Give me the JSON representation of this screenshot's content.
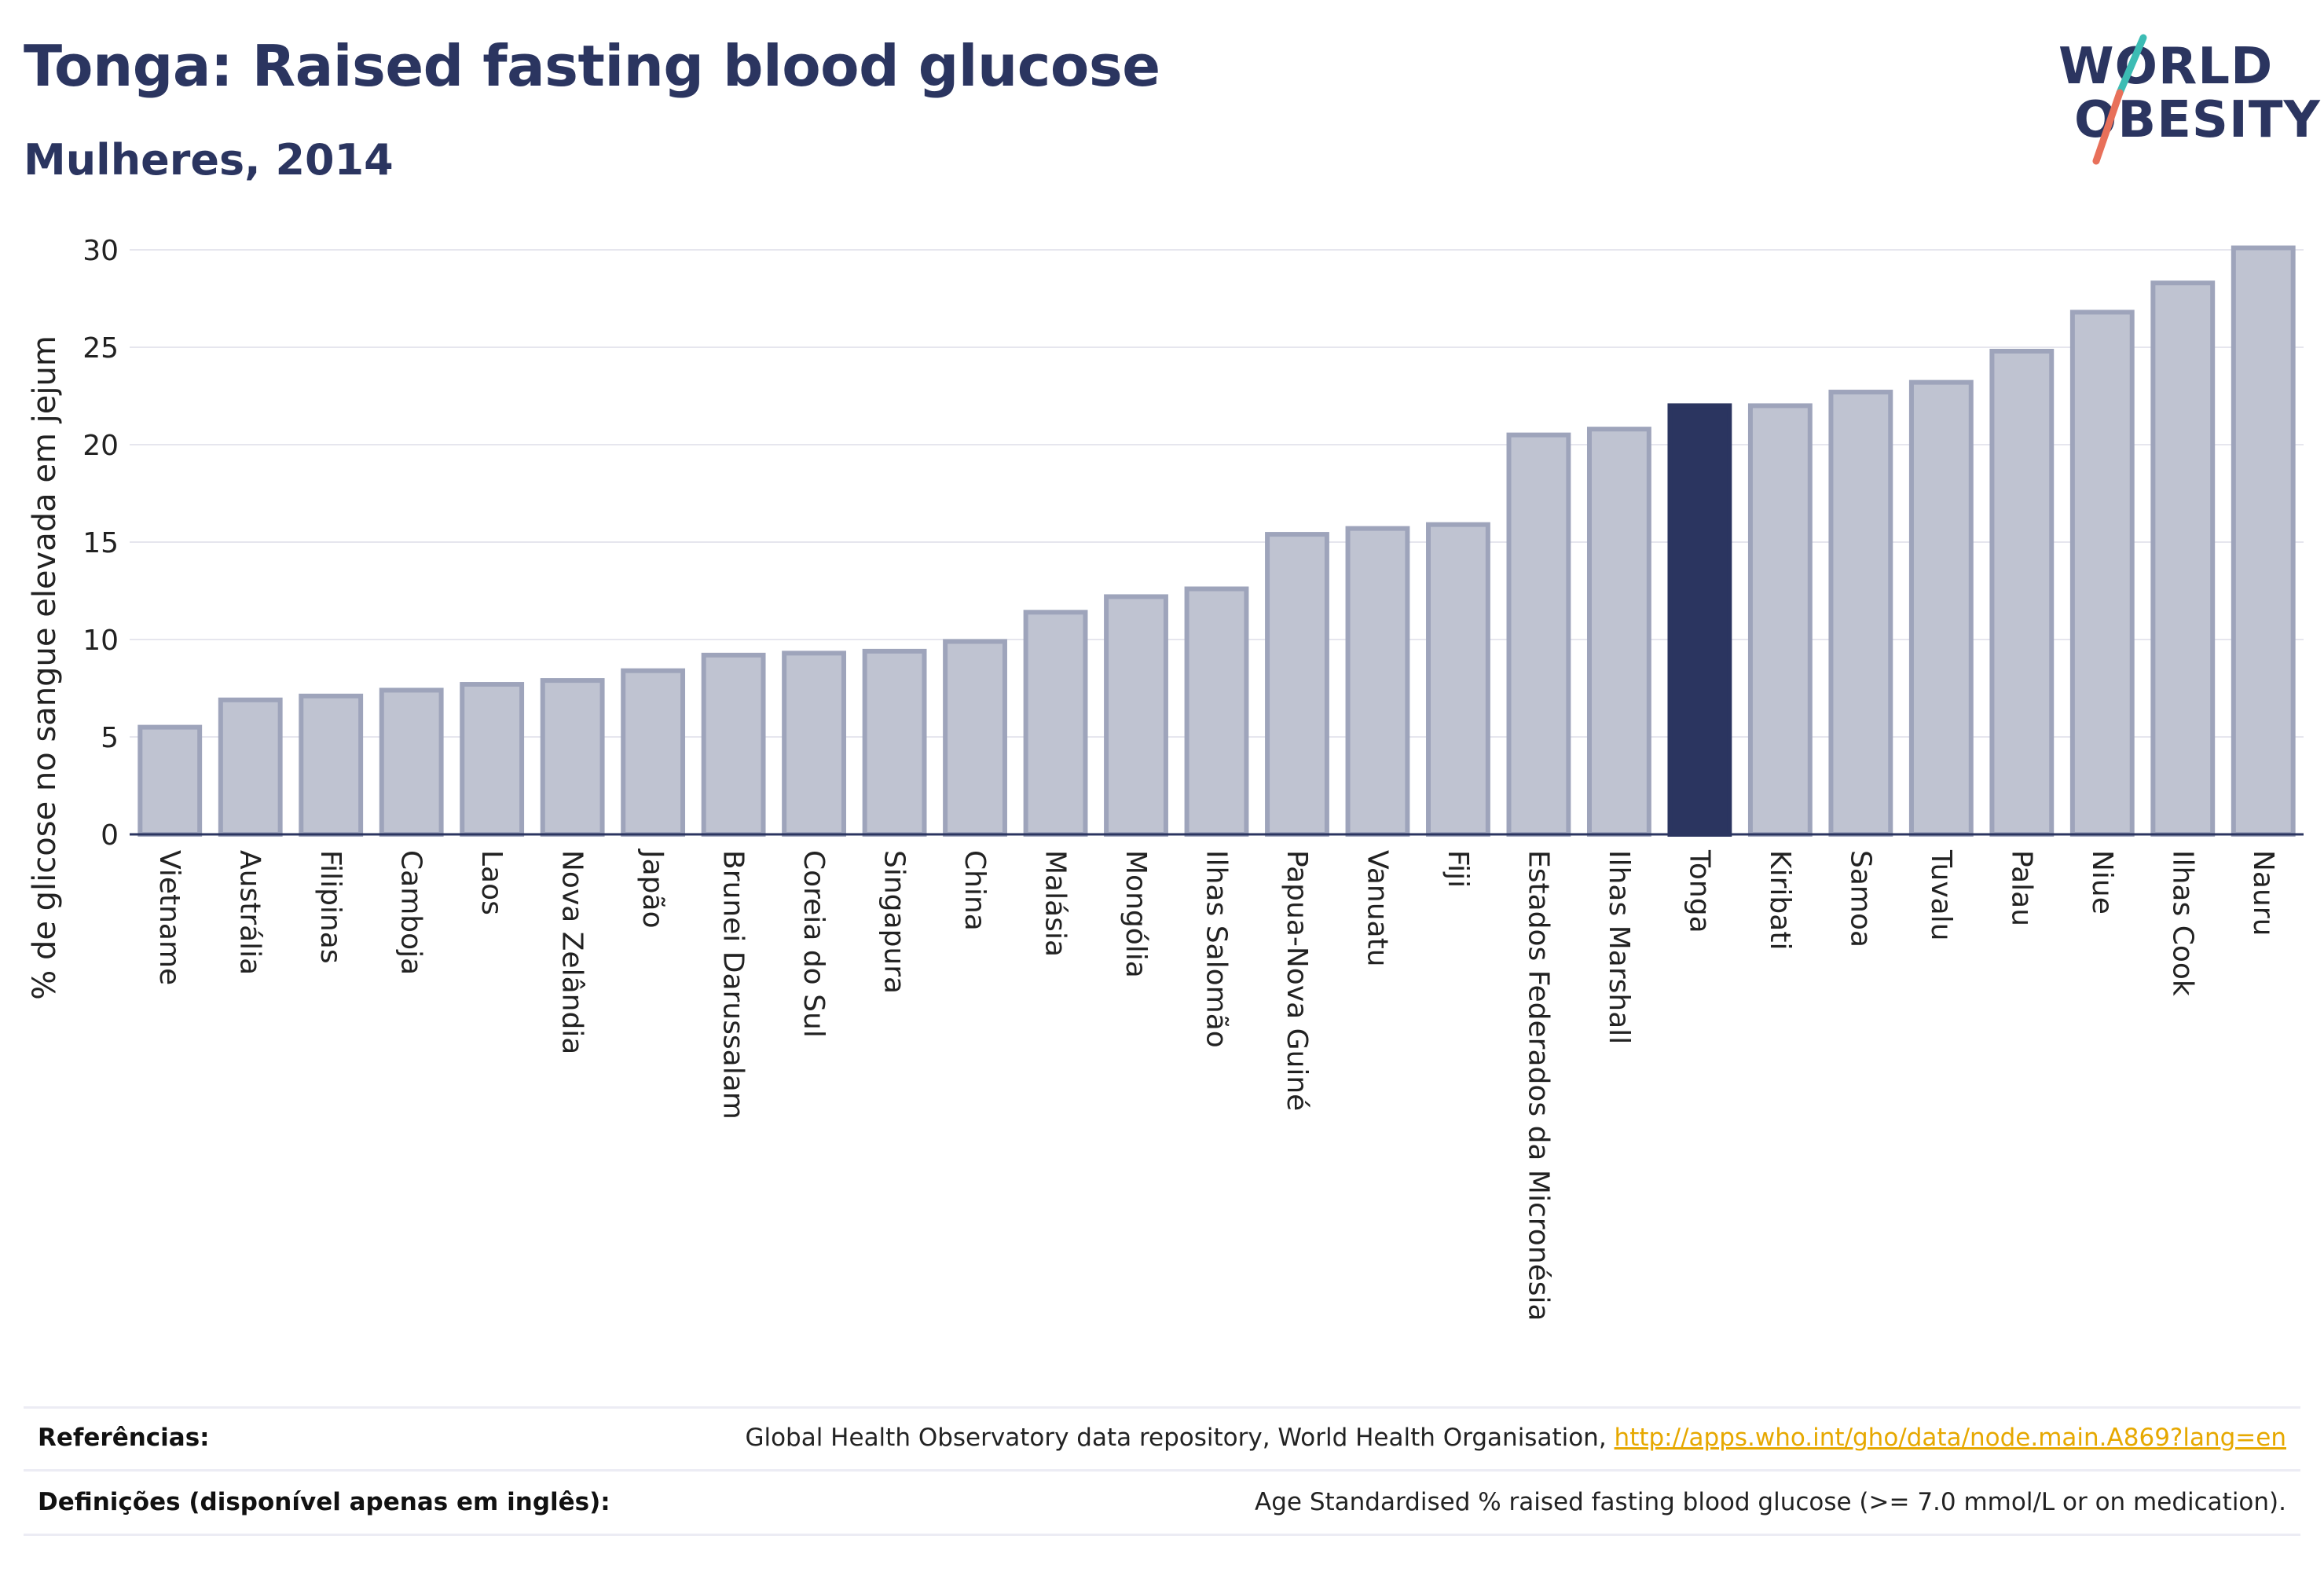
{
  "header": {
    "title": "Tonga: Raised fasting blood glucose",
    "subtitle": "Mulheres, 2014"
  },
  "logo": {
    "line1": "WORLD",
    "line2": "OBESITY",
    "accent_colors": [
      "#3cbcb4",
      "#e8705a"
    ]
  },
  "colors": {
    "bar_fill": "#bfc3d1",
    "bar_stroke": "#9ea4bb",
    "highlight_fill": "#2b3560",
    "grid": "#e6e6ee",
    "axis": "#2b3560"
  },
  "chart_data": {
    "type": "bar",
    "ylabel": "% de glicose no sangue elevada em jejum",
    "xlabel": "",
    "ylim": [
      0,
      31.5
    ],
    "yticks": [
      0,
      5,
      10,
      15,
      20,
      25,
      30
    ],
    "grid": true,
    "highlight": "Tonga",
    "categories": [
      "Vietname",
      "Austrália",
      "Filipinas",
      "Camboja",
      "Laos",
      "Nova Zelândia",
      "Japão",
      "Brunei Darussalam",
      "Coreia do Sul",
      "Singapura",
      "China",
      "Malásia",
      "Mongólia",
      "Ilhas Salomão",
      "Papua-Nova Guiné",
      "Vanuatu",
      "Fiji",
      "Estados Federados da Micronésia",
      "Ilhas Marshall",
      "Tonga",
      "Kiribati",
      "Samoa",
      "Tuvalu",
      "Palau",
      "Niue",
      "Ilhas Cook",
      "Nauru"
    ],
    "values": [
      5.5,
      6.9,
      7.1,
      7.4,
      7.7,
      7.9,
      8.4,
      9.2,
      9.3,
      9.4,
      9.9,
      11.4,
      12.2,
      12.6,
      15.4,
      15.7,
      15.9,
      20.5,
      20.8,
      22.0,
      22.0,
      22.7,
      23.2,
      24.8,
      26.8,
      28.3,
      30.1
    ]
  },
  "footer": {
    "references_label": "Referências:",
    "references_text": "Global Health Observatory data repository, World Health Organisation, ",
    "references_link": "http://apps.who.int/gho/data/node.main.A869?lang=en",
    "definitions_label": "Definições (disponível apenas em inglês):",
    "definitions_text": "Age Standardised % raised fasting blood glucose (>= 7.0 mmol/L or on medication)."
  }
}
